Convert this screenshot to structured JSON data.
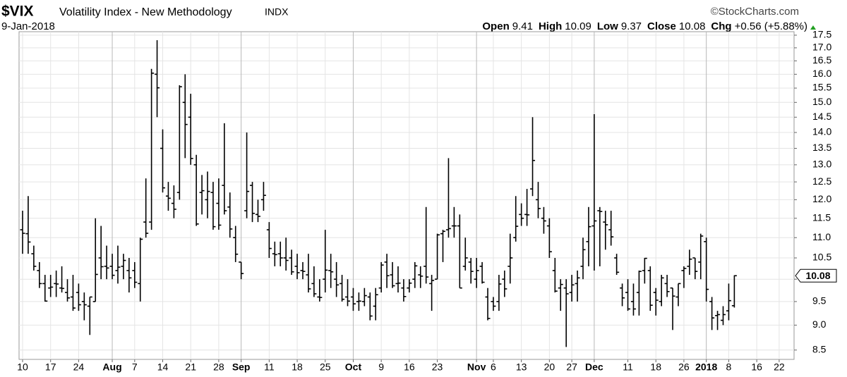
{
  "chart_data": {
    "type": "ohlc",
    "title": "$VIX",
    "subtitle": "Volatility Index - New Methodology",
    "exchange": "INDX",
    "date": "9-Jan-2018",
    "source": "©StockCharts.com",
    "quote": [
      {
        "label": "Open",
        "value": 9.41
      },
      {
        "label": "High",
        "value": 10.09
      },
      {
        "label": "Low",
        "value": 9.37
      },
      {
        "label": "Close",
        "value": 10.08
      },
      {
        "label": "Chg",
        "value": "+0.56 (+5.88%)"
      }
    ],
    "log_scale": true,
    "grid": true,
    "color": "#000000",
    "ylim": [
      8.32,
      17.64
    ],
    "yticks": [
      8.5,
      {
        "value": 9,
        "label": "9.0"
      },
      9.5,
      {
        "value": 10,
        "label": "10.0"
      },
      10.5,
      {
        "value": 11,
        "label": "11.0"
      },
      11.5,
      {
        "value": 12,
        "label": "12.0"
      },
      12.5,
      {
        "value": 13,
        "label": "13.0"
      },
      13.5,
      {
        "value": 14,
        "label": "14.0"
      },
      14.5,
      {
        "value": 15,
        "label": "15.0"
      },
      15.5,
      {
        "value": 16,
        "label": "16.0"
      },
      16.5,
      {
        "value": 17,
        "label": "17.0"
      },
      17.5
    ],
    "categories": [
      "10",
      null,
      null,
      null,
      null,
      "17",
      null,
      null,
      null,
      null,
      "24",
      null,
      null,
      null,
      null,
      null,
      "Aug",
      null,
      null,
      null,
      "7",
      null,
      null,
      null,
      null,
      "14",
      null,
      null,
      null,
      null,
      "21",
      null,
      null,
      null,
      null,
      "28",
      null,
      null,
      null,
      "Sep",
      null,
      null,
      null,
      null,
      "11",
      null,
      null,
      null,
      null,
      "18",
      null,
      null,
      null,
      null,
      "25",
      null,
      null,
      null,
      null,
      "Oct",
      null,
      null,
      null,
      null,
      "9",
      null,
      null,
      null,
      null,
      "16",
      null,
      null,
      null,
      null,
      "23",
      null,
      null,
      null,
      null,
      null,
      null,
      "Nov",
      null,
      null,
      "6",
      null,
      null,
      null,
      null,
      "13",
      null,
      null,
      null,
      null,
      "20",
      null,
      null,
      null,
      "27",
      null,
      null,
      null,
      "Dec",
      null,
      null,
      null,
      null,
      null,
      "11",
      null,
      null,
      null,
      null,
      "18",
      null,
      null,
      null,
      null,
      "26",
      null,
      null,
      null,
      "2018",
      null,
      null,
      null,
      "8",
      null,
      null,
      null,
      null,
      "16",
      null,
      null,
      null,
      "22"
    ],
    "open": [
      11.2,
      11.1,
      10.6,
      10.2,
      9.9,
      9.8,
      9.9,
      9.8,
      9.7,
      9.6,
      9.7,
      9.5,
      9.4,
      9.5,
      10.5,
      10.3,
      10.3,
      10.2,
      10.3,
      10.2,
      10.2,
      9.9,
      11.4,
      11.4,
      16.0,
      13.5,
      12.1,
      11.9,
      12.2,
      15.0,
      14.5,
      13.0,
      12.2,
      12.0,
      12.2,
      11.9,
      12.4,
      11.8,
      11.0,
      10.4,
      11.7,
      12.4,
      11.6,
      12.0,
      11.2,
      10.6,
      10.6,
      10.5,
      10.5,
      10.3,
      10.2,
      10.1,
      9.9,
      9.6,
      10.0,
      10.2,
      10.0,
      9.9,
      9.6,
      9.6,
      9.5,
      9.5,
      9.6,
      9.4,
      9.8,
      10.4,
      10.1,
      9.9,
      9.8,
      9.8,
      10.0,
      10.1,
      10.3,
      9.9,
      10.0,
      11.1,
      11.2,
      11.3,
      11.3,
      10.3,
      10.4,
      10.0,
      10.3,
      9.6,
      9.5,
      9.5,
      10.0,
      10.3,
      11.0,
      11.6,
      11.6,
      12.3,
      12.0,
      11.5,
      11.3,
      10.2,
      9.8,
      9.8,
      9.7,
      9.9,
      10.3,
      10.9,
      11.3,
      11.7,
      11.4,
      11.2,
      10.5,
      9.8,
      9.7,
      9.5,
      9.7,
      10.2,
      10.2,
      9.7,
      9.5,
      9.9,
      9.8,
      9.6,
      10.2,
      10.3,
      10.5,
      10.4,
      10.9,
      9.5,
      9.2,
      9.1,
      9.3,
      9.41,
      null,
      null,
      null,
      null,
      null,
      null,
      null,
      null
    ],
    "high": [
      11.7,
      12.1,
      10.8,
      10.4,
      10.1,
      10.1,
      10.2,
      10.3,
      10.0,
      10.1,
      9.9,
      9.7,
      9.6,
      11.5,
      11.3,
      10.8,
      10.6,
      10.8,
      10.6,
      10.5,
      10.4,
      11.0,
      12.6,
      16.2,
      17.3,
      14.1,
      12.5,
      12.4,
      15.6,
      16.0,
      15.3,
      13.3,
      12.7,
      12.8,
      12.5,
      12.6,
      14.3,
      12.2,
      11.3,
      10.4,
      14.0,
      12.5,
      12.0,
      12.5,
      11.4,
      10.9,
      10.9,
      11.0,
      10.7,
      10.6,
      10.4,
      10.6,
      10.3,
      10.0,
      11.2,
      10.6,
      10.4,
      10.1,
      10.0,
      9.8,
      9.7,
      9.8,
      9.7,
      9.8,
      10.4,
      10.6,
      10.4,
      10.3,
      10.0,
      10.0,
      10.4,
      10.3,
      11.8,
      10.1,
      11.1,
      11.2,
      13.2,
      11.8,
      11.6,
      11.0,
      10.5,
      10.5,
      10.4,
      9.8,
      9.6,
      10.1,
      10.2,
      11.1,
      12.1,
      11.9,
      12.3,
      14.5,
      12.5,
      11.8,
      11.5,
      10.5,
      10.0,
      10.0,
      10.1,
      10.2,
      11.0,
      11.8,
      14.6,
      11.8,
      11.7,
      11.7,
      10.6,
      9.9,
      10.0,
      9.9,
      10.2,
      10.5,
      10.3,
      9.8,
      10.1,
      10.1,
      9.8,
      9.9,
      10.3,
      10.7,
      10.5,
      11.1,
      11.0,
      9.6,
      9.3,
      9.4,
      9.9,
      10.09,
      null,
      null,
      null,
      null,
      null,
      null,
      null,
      null
    ],
    "low": [
      10.6,
      10.6,
      10.2,
      9.8,
      9.5,
      9.6,
      9.6,
      9.7,
      9.5,
      9.3,
      9.3,
      9.1,
      8.8,
      9.5,
      10.0,
      10.0,
      10.0,
      9.9,
      10.0,
      9.7,
      9.8,
      9.5,
      11.0,
      11.2,
      14.5,
      12.2,
      11.7,
      11.5,
      12.0,
      13.2,
      13.0,
      11.3,
      11.6,
      11.5,
      11.2,
      11.2,
      11.6,
      11.0,
      10.4,
      10.0,
      11.5,
      11.4,
      11.4,
      11.7,
      10.5,
      10.3,
      10.3,
      10.2,
      10.1,
      10.0,
      10.0,
      9.7,
      9.6,
      9.5,
      9.7,
      9.8,
      9.6,
      9.5,
      9.4,
      9.3,
      9.3,
      9.4,
      9.1,
      9.1,
      9.7,
      9.8,
      9.8,
      9.7,
      9.5,
      9.7,
      9.8,
      9.8,
      9.9,
      9.3,
      10.0,
      10.4,
      11.0,
      11.0,
      9.8,
      10.2,
      9.9,
      9.8,
      9.9,
      9.1,
      9.3,
      9.3,
      9.6,
      9.9,
      10.9,
      11.3,
      11.3,
      12.1,
      11.5,
      11.1,
      10.5,
      9.7,
      9.3,
      8.56,
      9.5,
      9.5,
      10.0,
      10.3,
      10.2,
      10.3,
      10.7,
      10.8,
      10.1,
      9.4,
      9.3,
      9.2,
      9.2,
      9.9,
      9.3,
      9.2,
      9.4,
      9.6,
      8.9,
      9.4,
      9.8,
      10.1,
      10.0,
      10.0,
      9.5,
      8.9,
      8.9,
      9.0,
      9.1,
      9.37,
      null,
      null,
      null,
      null,
      null,
      null,
      null,
      null
    ],
    "close": [
      11.11,
      10.89,
      10.3,
      9.9,
      9.51,
      9.82,
      9.89,
      9.79,
      9.58,
      9.36,
      9.43,
      9.43,
      9.6,
      10.11,
      10.29,
      10.26,
      10.09,
      10.28,
      10.44,
      10.03,
      9.93,
      10.96,
      11.11,
      16.04,
      15.51,
      12.33,
      12.04,
      11.74,
      15.55,
      14.26,
      13.19,
      11.35,
      12.25,
      12.23,
      11.28,
      11.32,
      11.7,
      11.22,
      10.59,
      10.13,
      12.23,
      11.63,
      11.55,
      12.12,
      10.73,
      10.58,
      10.5,
      10.44,
      10.17,
      10.15,
      10.18,
      9.78,
      9.67,
      9.59,
      10.21,
      10.17,
      9.87,
      9.55,
      9.51,
      9.45,
      9.51,
      9.63,
      9.19,
      9.65,
      10.33,
      10.08,
      9.85,
      9.91,
      9.61,
      9.91,
      10.31,
      10.07,
      10.05,
      9.97,
      11.07,
      11.16,
      11.23,
      11.3,
      9.8,
      10.5,
      10.18,
      10.2,
      9.93,
      9.14,
      9.4,
      9.89,
      9.78,
      10.5,
      11.29,
      11.5,
      11.59,
      13.13,
      11.76,
      11.43,
      10.65,
      9.73,
      9.88,
      9.67,
      9.87,
      10.03,
      10.7,
      11.28,
      11.43,
      11.68,
      11.33,
      11.02,
      10.16,
      9.58,
      9.34,
      9.34,
      10.18,
      10.49,
      9.42,
      9.53,
      10.03,
      9.72,
      9.62,
      9.9,
      10.25,
      10.47,
      10.18,
      11.04,
      9.77,
      9.15,
      9.22,
      9.22,
      9.52,
      10.08,
      null,
      null,
      null,
      null,
      null,
      null,
      null,
      null
    ]
  }
}
